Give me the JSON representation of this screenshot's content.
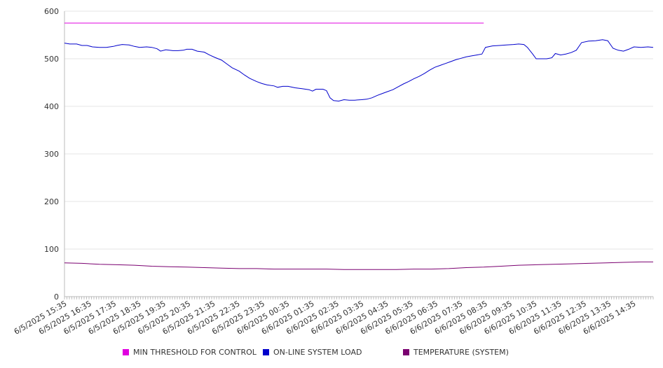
{
  "chart_data": {
    "type": "line",
    "ylim": [
      0,
      600
    ],
    "yticks": [
      0,
      100,
      200,
      300,
      400,
      500,
      600
    ],
    "grid": true,
    "legend_position": "bottom",
    "x_ticks": [
      "6/5/2025 15:35",
      "6/5/2025 16:35",
      "6/5/2025 17:35",
      "6/5/2025 18:35",
      "6/5/2025 19:35",
      "6/5/2025 20:35",
      "6/5/2025 21:35",
      "6/5/2025 22:35",
      "6/5/2025 23:35",
      "6/6/2025 00:35",
      "6/6/2025 01:35",
      "6/6/2025 02:35",
      "6/6/2025 03:35",
      "6/6/2025 04:35",
      "6/6/2025 05:35",
      "6/6/2025 06:35",
      "6/6/2025 07:35",
      "6/6/2025 08:35",
      "6/6/2025 09:35",
      "6/6/2025 10:35",
      "6/6/2025 11:35",
      "6/6/2025 12:35",
      "6/6/2025 13:35",
      "6/6/2025 14:35"
    ],
    "x_hours": [
      0,
      24
    ],
    "series": [
      {
        "name": "MIN THRESHOLD FOR CONTROL",
        "color": "#e000e0",
        "points": [
          [
            0,
            575
          ],
          [
            24,
            575
          ]
        ]
      },
      {
        "name": "ON-LINE SYSTEM LOAD",
        "color": "#0000cc",
        "points": [
          [
            0,
            533
          ],
          [
            0.3,
            531
          ],
          [
            0.7,
            531
          ],
          [
            1.0,
            528
          ],
          [
            1.3,
            528
          ],
          [
            1.6,
            525
          ],
          [
            2.0,
            524
          ],
          [
            2.4,
            524
          ],
          [
            2.8,
            526
          ],
          [
            3.0,
            528
          ],
          [
            3.3,
            530
          ],
          [
            3.7,
            529
          ],
          [
            4.0,
            526
          ],
          [
            4.3,
            524
          ],
          [
            4.7,
            525
          ],
          [
            5.0,
            524
          ],
          [
            5.3,
            521
          ],
          [
            5.5,
            516
          ],
          [
            5.8,
            519
          ],
          [
            6.2,
            517
          ],
          [
            6.5,
            517
          ],
          [
            6.8,
            518
          ],
          [
            7.0,
            520
          ],
          [
            7.3,
            520
          ],
          [
            7.6,
            516
          ],
          [
            8.0,
            514
          ],
          [
            8.3,
            508
          ],
          [
            8.6,
            503
          ],
          [
            9.0,
            497
          ],
          [
            9.3,
            489
          ],
          [
            9.6,
            481
          ],
          [
            10.0,
            474
          ],
          [
            10.3,
            466
          ],
          [
            10.6,
            459
          ],
          [
            11.0,
            452
          ],
          [
            11.3,
            448
          ],
          [
            11.6,
            445
          ],
          [
            12.0,
            443
          ],
          [
            12.2,
            440
          ],
          [
            12.5,
            442
          ],
          [
            12.8,
            442
          ],
          [
            13.2,
            439
          ],
          [
            13.6,
            437
          ],
          [
            14.0,
            435
          ],
          [
            14.2,
            432
          ],
          [
            14.4,
            436
          ],
          [
            14.8,
            436
          ],
          [
            15.0,
            433
          ],
          [
            15.2,
            418
          ],
          [
            15.4,
            412
          ],
          [
            15.7,
            411
          ],
          [
            16.0,
            414
          ],
          [
            16.3,
            413
          ],
          [
            16.6,
            413
          ],
          [
            17.0,
            414
          ],
          [
            17.3,
            415
          ],
          [
            17.6,
            418
          ],
          [
            17.9,
            423
          ],
          [
            18.2,
            427
          ],
          [
            18.5,
            431
          ],
          [
            18.8,
            435
          ],
          [
            19.1,
            441
          ],
          [
            19.4,
            447
          ],
          [
            19.7,
            452
          ],
          [
            20.0,
            458
          ],
          [
            20.3,
            463
          ],
          [
            20.6,
            469
          ],
          [
            20.9,
            476
          ],
          [
            21.2,
            482
          ],
          [
            21.5,
            486
          ],
          [
            21.8,
            490
          ],
          [
            22.1,
            494
          ],
          [
            22.4,
            498
          ],
          [
            22.7,
            501
          ],
          [
            23.0,
            504
          ],
          [
            23.3,
            506
          ],
          [
            23.6,
            508
          ],
          [
            23.9,
            510
          ],
          [
            24.1,
            524
          ],
          [
            24.5,
            527
          ],
          [
            24.9,
            528
          ],
          [
            25.3,
            529
          ],
          [
            25.7,
            530
          ],
          [
            26.0,
            531
          ],
          [
            26.3,
            530
          ],
          [
            26.5,
            524
          ],
          [
            26.8,
            510
          ],
          [
            27.0,
            500
          ],
          [
            27.3,
            500
          ],
          [
            27.6,
            500
          ],
          [
            27.9,
            502
          ],
          [
            28.1,
            511
          ],
          [
            28.4,
            508
          ],
          [
            28.7,
            510
          ],
          [
            29.0,
            513
          ],
          [
            29.3,
            518
          ],
          [
            29.6,
            534
          ],
          [
            30.0,
            537
          ],
          [
            30.4,
            538
          ],
          [
            30.8,
            540
          ],
          [
            31.1,
            538
          ],
          [
            31.4,
            522
          ],
          [
            31.7,
            518
          ],
          [
            32.0,
            516
          ],
          [
            32.3,
            520
          ],
          [
            32.6,
            525
          ],
          [
            33.0,
            524
          ],
          [
            33.4,
            525
          ],
          [
            33.7,
            524
          ]
        ]
      },
      {
        "name": "TEMPERATURE (SYSTEM)",
        "color": "#7a0070",
        "points": [
          [
            0,
            71
          ],
          [
            1,
            70
          ],
          [
            2,
            68
          ],
          [
            3,
            67
          ],
          [
            4,
            66
          ],
          [
            5,
            64
          ],
          [
            6,
            63
          ],
          [
            7,
            62
          ],
          [
            8,
            61
          ],
          [
            9,
            60
          ],
          [
            10,
            59
          ],
          [
            11,
            59
          ],
          [
            12,
            58
          ],
          [
            13,
            58
          ],
          [
            14,
            58
          ],
          [
            15,
            58
          ],
          [
            16,
            57
          ],
          [
            17,
            57
          ],
          [
            18,
            57
          ],
          [
            19,
            57
          ],
          [
            20,
            58
          ],
          [
            21,
            58
          ],
          [
            22,
            59
          ],
          [
            23,
            61
          ],
          [
            24,
            62
          ],
          [
            25,
            64
          ],
          [
            26,
            66
          ],
          [
            27,
            67
          ],
          [
            28,
            68
          ],
          [
            29,
            69
          ],
          [
            30,
            70
          ],
          [
            31,
            71
          ],
          [
            32,
            72
          ],
          [
            33,
            73
          ],
          [
            33.7,
            73
          ]
        ]
      }
    ]
  },
  "legend": [
    {
      "label": "MIN THRESHOLD FOR CONTROL",
      "color": "#e000e0"
    },
    {
      "label": "ON-LINE SYSTEM LOAD",
      "color": "#0000cc"
    },
    {
      "label": "TEMPERATURE (SYSTEM)",
      "color": "#7a0070"
    }
  ]
}
